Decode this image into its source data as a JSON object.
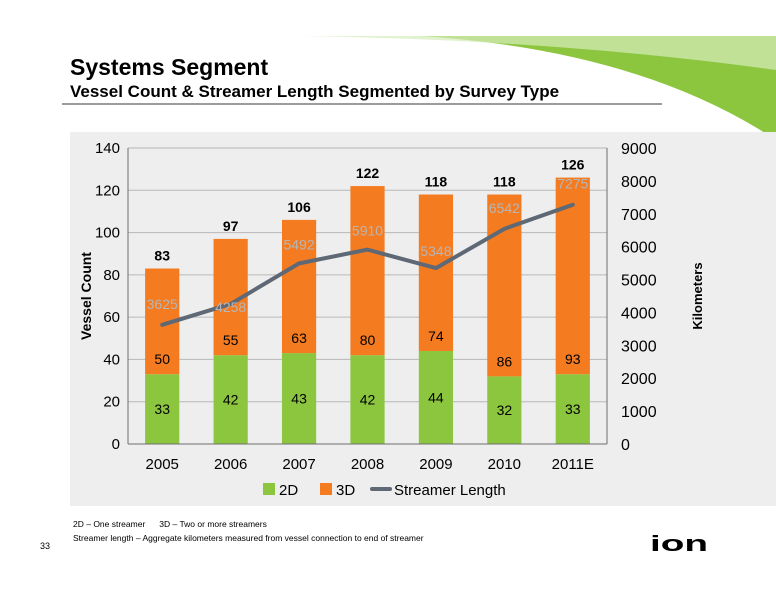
{
  "title": "Systems Segment",
  "subtitle": "Vessel Count & Streamer Length Segmented by Survey Type",
  "chart_data": {
    "type": "bar",
    "stacked": true,
    "categories": [
      "2005",
      "2006",
      "2007",
      "2008",
      "2009",
      "2010",
      "2011E"
    ],
    "series": [
      {
        "name": "2D",
        "type": "bar",
        "axis": "left",
        "color": "#8cc63f",
        "values": [
          33,
          42,
          43,
          42,
          44,
          32,
          33
        ]
      },
      {
        "name": "3D",
        "type": "bar",
        "axis": "left",
        "color": "#f47b20",
        "values": [
          50,
          55,
          63,
          80,
          74,
          86,
          93
        ]
      },
      {
        "name": "Streamer Length",
        "type": "line",
        "axis": "right",
        "color": "#5f6875",
        "values": [
          3625,
          4258,
          5492,
          5910,
          5348,
          6542,
          7275
        ]
      }
    ],
    "totals": [
      83,
      97,
      106,
      122,
      118,
      118,
      126
    ],
    "ylabel": "Vessel Count",
    "y2label": "Kilometers",
    "ylim": [
      0,
      140
    ],
    "y2lim": [
      0,
      9000
    ],
    "yticks": [
      0,
      20,
      40,
      60,
      80,
      100,
      120,
      140
    ],
    "y2ticks": [
      0,
      1000,
      2000,
      3000,
      4000,
      5000,
      6000,
      7000,
      8000,
      9000
    ],
    "grid": true,
    "legend": "bottom"
  },
  "footnotes": {
    "line1a": "2D – One streamer",
    "line1b": "3D – Two or more streamers",
    "line2": "Streamer length – Aggregate kilometers measured from vessel connection to end of streamer"
  },
  "page_number": "33",
  "logo": {
    "icon": "ion-logo-icon",
    "text": "ion"
  }
}
